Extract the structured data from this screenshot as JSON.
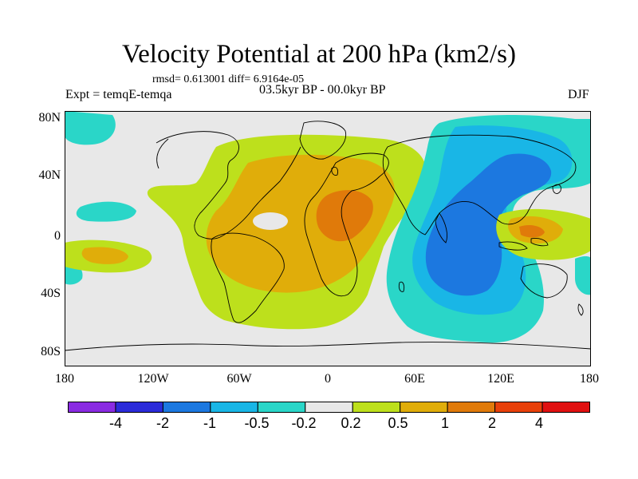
{
  "title": "Velocity Potential at 200 hPa (km2/s)",
  "stats": "rmsd= 0.613001 diff= 6.9164e-05",
  "left_label": "Expt = temqE-temqa",
  "center_label": "03.5kyr BP - 00.0kyr BP",
  "right_label": "DJF",
  "lat_labels": [
    "80N",
    "40N",
    "0",
    "40S",
    "80S"
  ],
  "lon_labels": [
    "180",
    "120W",
    "60W",
    "0",
    "60E",
    "120E",
    "180"
  ],
  "colorbar": {
    "labels": [
      "-4",
      "-2",
      "-1",
      "-0.5",
      "-0.2",
      "0.2",
      "0.5",
      "1",
      "2",
      "4"
    ],
    "colors": [
      "#8a2be2",
      "#2b2bd9",
      "#1c78e0",
      "#19b6e6",
      "#2ad6c8",
      "#e8e8e8",
      "#bde01c",
      "#e0ad0a",
      "#e07a0a",
      "#e8400a",
      "#e01010"
    ]
  },
  "map": {
    "background": "#e8e8e8",
    "legend_colors": {
      "neg_05_02": "#2ad6c8",
      "neg_1_05": "#19b6e6",
      "neg_2_1": "#1c78e0",
      "pos_02_05": "#bde01c",
      "pos_05_1": "#e0ad0a",
      "pos_1_2": "#e07a0a"
    }
  }
}
